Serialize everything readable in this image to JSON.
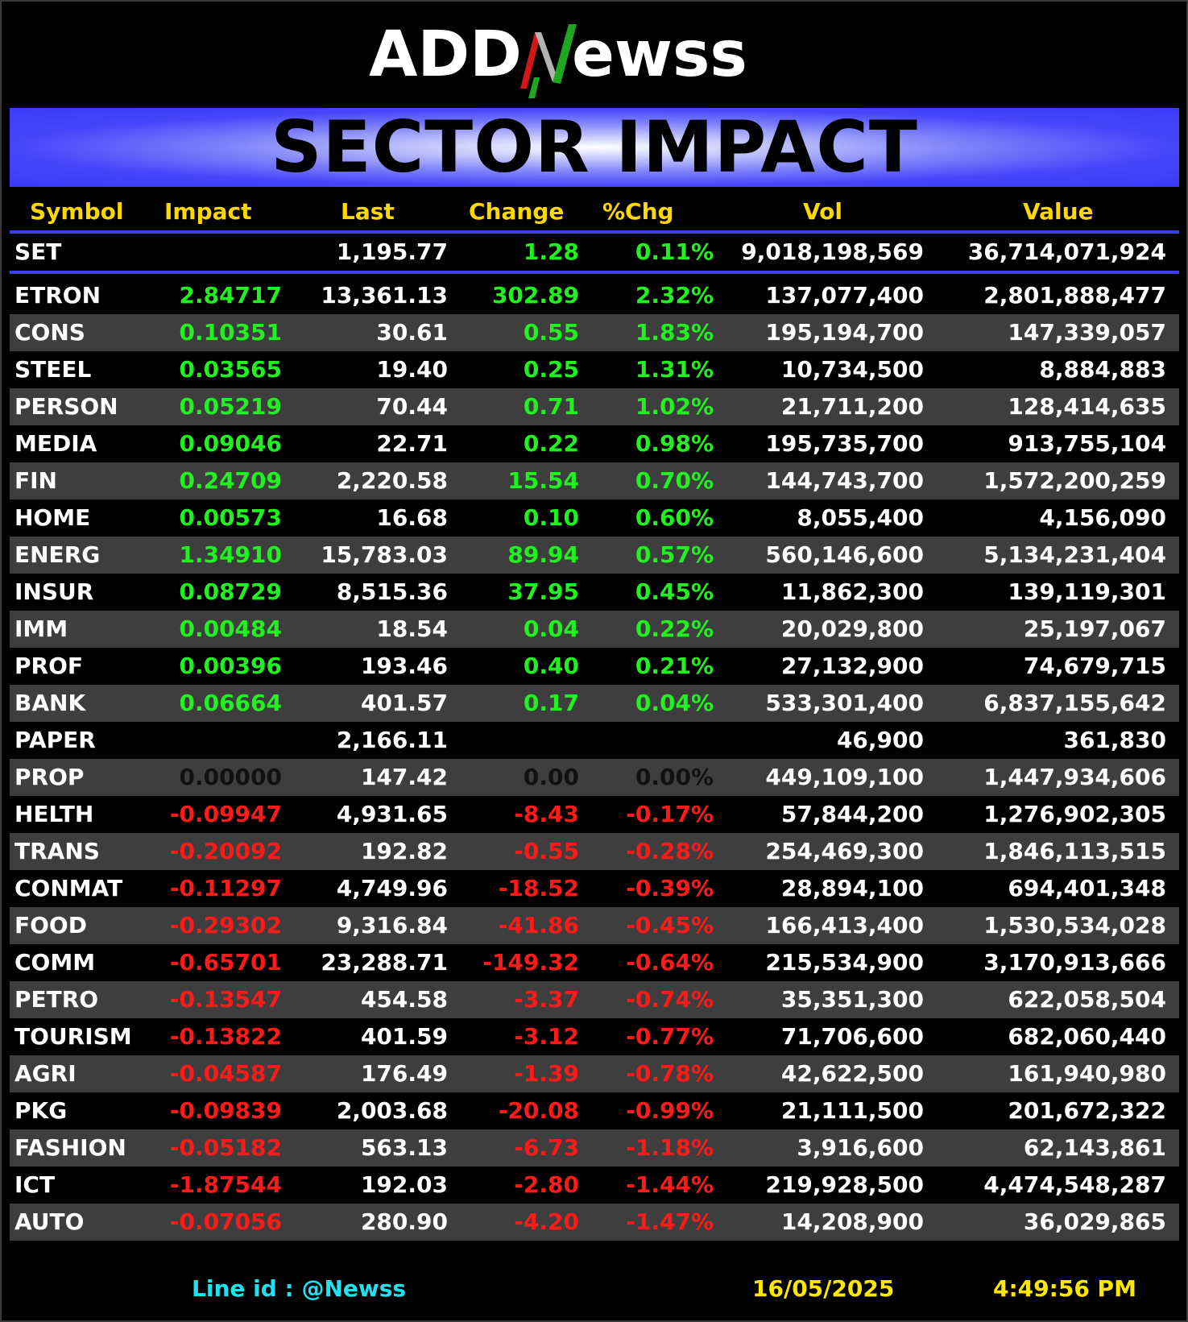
{
  "logo": {
    "text_part1": "ADD",
    "text_part2": "ewss",
    "accent_letter": "N"
  },
  "banner": {
    "title": "SECTOR IMPACT"
  },
  "columns": {
    "symbol": "Symbol",
    "impact": "Impact",
    "last": "Last",
    "change": "Change",
    "pct": "%Chg",
    "vol": "Vol",
    "value": "Value"
  },
  "set_row": {
    "symbol": "SET",
    "impact": "",
    "last": "1,195.77",
    "change": "1.28",
    "pct": "0.11%",
    "vol": "9,018,198,569",
    "value": "36,714,071,924"
  },
  "rows": [
    {
      "symbol": "ETRON",
      "impact": "2.84717",
      "last": "13,361.13",
      "change": "302.89",
      "pct": "2.32%",
      "vol": "137,077,400",
      "value": "2,801,888,477",
      "status": "up"
    },
    {
      "symbol": "CONS",
      "impact": "0.10351",
      "last": "30.61",
      "change": "0.55",
      "pct": "1.83%",
      "vol": "195,194,700",
      "value": "147,339,057",
      "status": "up"
    },
    {
      "symbol": "STEEL",
      "impact": "0.03565",
      "last": "19.40",
      "change": "0.25",
      "pct": "1.31%",
      "vol": "10,734,500",
      "value": "8,884,883",
      "status": "up"
    },
    {
      "symbol": "PERSON",
      "impact": "0.05219",
      "last": "70.44",
      "change": "0.71",
      "pct": "1.02%",
      "vol": "21,711,200",
      "value": "128,414,635",
      "status": "up"
    },
    {
      "symbol": "MEDIA",
      "impact": "0.09046",
      "last": "22.71",
      "change": "0.22",
      "pct": "0.98%",
      "vol": "195,735,700",
      "value": "913,755,104",
      "status": "up"
    },
    {
      "symbol": "FIN",
      "impact": "0.24709",
      "last": "2,220.58",
      "change": "15.54",
      "pct": "0.70%",
      "vol": "144,743,700",
      "value": "1,572,200,259",
      "status": "up"
    },
    {
      "symbol": "HOME",
      "impact": "0.00573",
      "last": "16.68",
      "change": "0.10",
      "pct": "0.60%",
      "vol": "8,055,400",
      "value": "4,156,090",
      "status": "up"
    },
    {
      "symbol": "ENERG",
      "impact": "1.34910",
      "last": "15,783.03",
      "change": "89.94",
      "pct": "0.57%",
      "vol": "560,146,600",
      "value": "5,134,231,404",
      "status": "up"
    },
    {
      "symbol": "INSUR",
      "impact": "0.08729",
      "last": "8,515.36",
      "change": "37.95",
      "pct": "0.45%",
      "vol": "11,862,300",
      "value": "139,119,301",
      "status": "up"
    },
    {
      "symbol": "IMM",
      "impact": "0.00484",
      "last": "18.54",
      "change": "0.04",
      "pct": "0.22%",
      "vol": "20,029,800",
      "value": "25,197,067",
      "status": "up"
    },
    {
      "symbol": "PROF",
      "impact": "0.00396",
      "last": "193.46",
      "change": "0.40",
      "pct": "0.21%",
      "vol": "27,132,900",
      "value": "74,679,715",
      "status": "up"
    },
    {
      "symbol": "BANK",
      "impact": "0.06664",
      "last": "401.57",
      "change": "0.17",
      "pct": "0.04%",
      "vol": "533,301,400",
      "value": "6,837,155,642",
      "status": "up"
    },
    {
      "symbol": "PAPER",
      "impact": "",
      "last": "2,166.11",
      "change": "",
      "pct": "",
      "vol": "46,900",
      "value": "361,830",
      "status": "none"
    },
    {
      "symbol": "PROP",
      "impact": "0.00000",
      "last": "147.42",
      "change": "0.00",
      "pct": "0.00%",
      "vol": "449,109,100",
      "value": "1,447,934,606",
      "status": "flat"
    },
    {
      "symbol": "HELTH",
      "impact": "-0.09947",
      "last": "4,931.65",
      "change": "-8.43",
      "pct": "-0.17%",
      "vol": "57,844,200",
      "value": "1,276,902,305",
      "status": "down"
    },
    {
      "symbol": "TRANS",
      "impact": "-0.20092",
      "last": "192.82",
      "change": "-0.55",
      "pct": "-0.28%",
      "vol": "254,469,300",
      "value": "1,846,113,515",
      "status": "down"
    },
    {
      "symbol": "CONMAT",
      "impact": "-0.11297",
      "last": "4,749.96",
      "change": "-18.52",
      "pct": "-0.39%",
      "vol": "28,894,100",
      "value": "694,401,348",
      "status": "down"
    },
    {
      "symbol": "FOOD",
      "impact": "-0.29302",
      "last": "9,316.84",
      "change": "-41.86",
      "pct": "-0.45%",
      "vol": "166,413,400",
      "value": "1,530,534,028",
      "status": "down"
    },
    {
      "symbol": "COMM",
      "impact": "-0.65701",
      "last": "23,288.71",
      "change": "-149.32",
      "pct": "-0.64%",
      "vol": "215,534,900",
      "value": "3,170,913,666",
      "status": "down"
    },
    {
      "symbol": "PETRO",
      "impact": "-0.13547",
      "last": "454.58",
      "change": "-3.37",
      "pct": "-0.74%",
      "vol": "35,351,300",
      "value": "622,058,504",
      "status": "down"
    },
    {
      "symbol": "TOURISM",
      "impact": "-0.13822",
      "last": "401.59",
      "change": "-3.12",
      "pct": "-0.77%",
      "vol": "71,706,600",
      "value": "682,060,440",
      "status": "down"
    },
    {
      "symbol": "AGRI",
      "impact": "-0.04587",
      "last": "176.49",
      "change": "-1.39",
      "pct": "-0.78%",
      "vol": "42,622,500",
      "value": "161,940,980",
      "status": "down"
    },
    {
      "symbol": "PKG",
      "impact": "-0.09839",
      "last": "2,003.68",
      "change": "-20.08",
      "pct": "-0.99%",
      "vol": "21,111,500",
      "value": "201,672,322",
      "status": "down"
    },
    {
      "symbol": "FASHION",
      "impact": "-0.05182",
      "last": "563.13",
      "change": "-6.73",
      "pct": "-1.18%",
      "vol": "3,916,600",
      "value": "62,143,861",
      "status": "down"
    },
    {
      "symbol": "ICT",
      "impact": "-1.87544",
      "last": "192.03",
      "change": "-2.80",
      "pct": "-1.44%",
      "vol": "219,928,500",
      "value": "4,474,548,287",
      "status": "down"
    },
    {
      "symbol": "AUTO",
      "impact": "-0.07056",
      "last": "280.90",
      "change": "-4.20",
      "pct": "-1.47%",
      "vol": "14,208,900",
      "value": "36,029,865",
      "status": "down"
    }
  ],
  "footer": {
    "line_id": "Line id  : @Newss",
    "date": "16/05/2025",
    "time": "4:49:56 PM"
  },
  "colors": {
    "up": "#21f021",
    "down": "#ff1a1a",
    "flat": "#111111",
    "header": "#ffd800",
    "banner": "#3b3bf7",
    "rule": "#3d3df2",
    "alt_row": "#3e3e3e",
    "footer_line": "#22e0f0",
    "footer_date": "#ffe800"
  }
}
